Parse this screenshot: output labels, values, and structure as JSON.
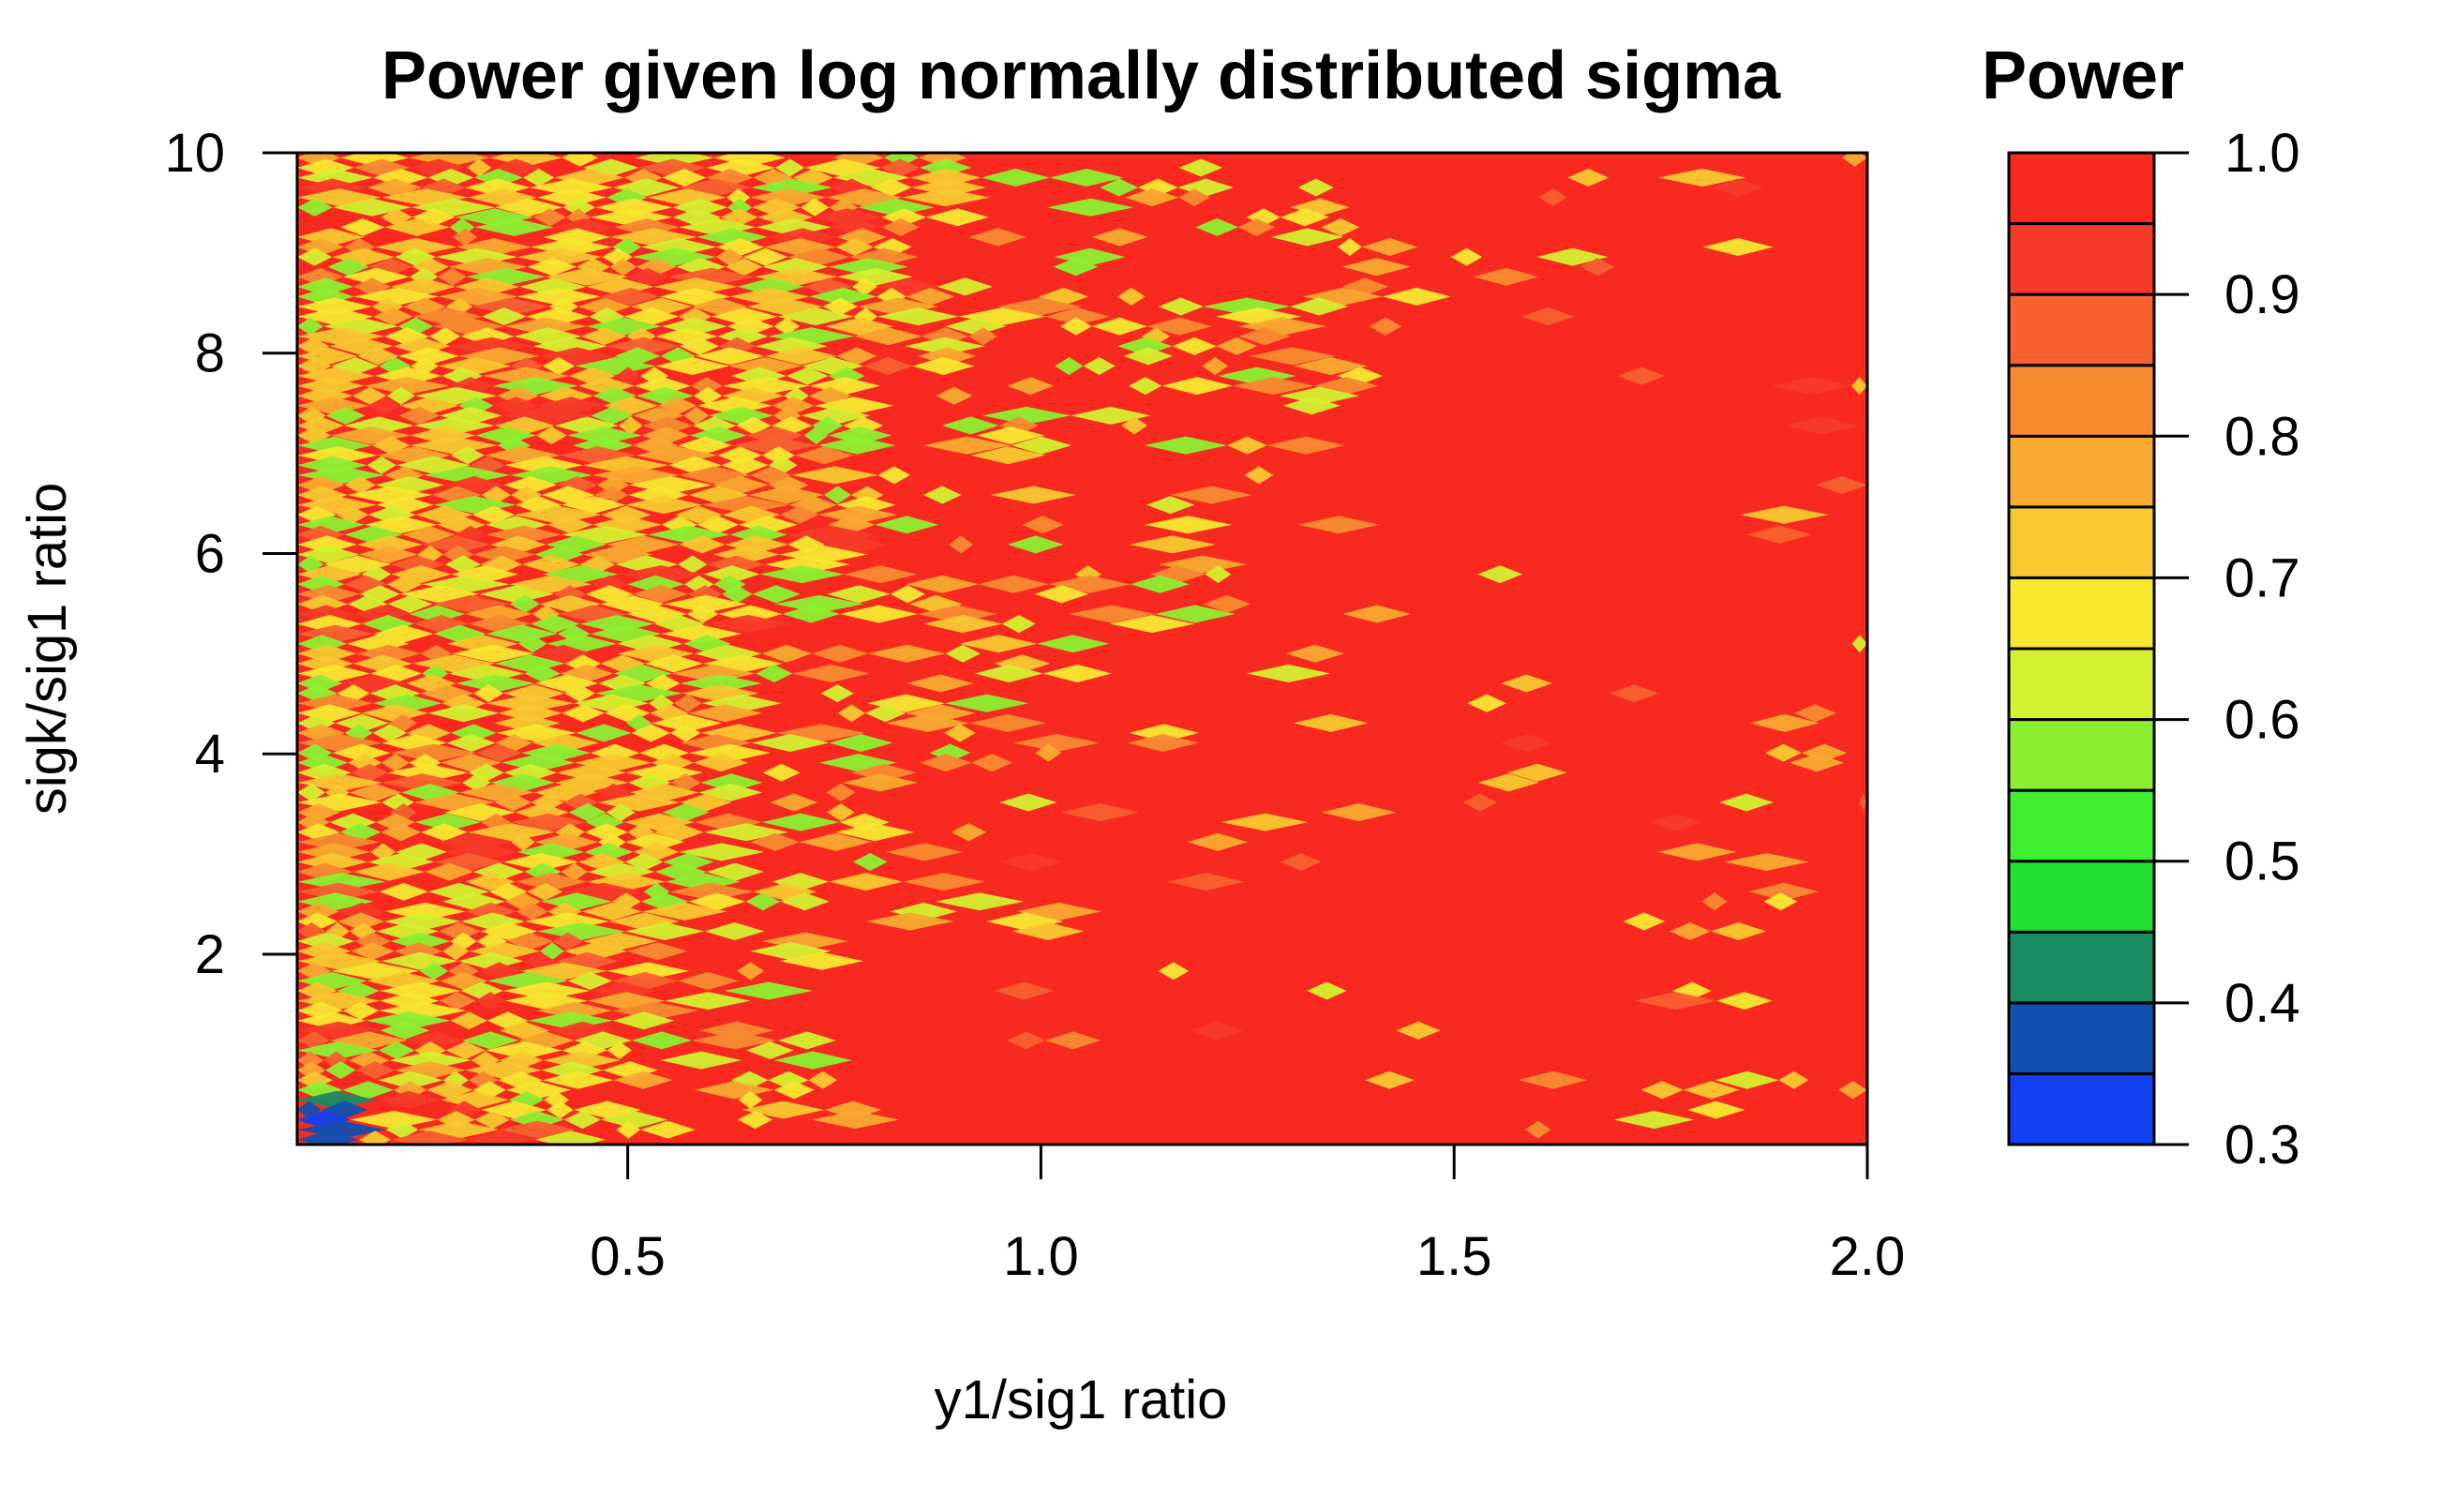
{
  "chart_data": {
    "type": "heatmap",
    "title": "Power given log normally distributed sigma",
    "xlabel": "y1/sig1 ratio",
    "ylabel": "sigk/sig1 ratio",
    "xlim": [
      0.1,
      2.0
    ],
    "ylim": [
      0.1,
      10.0
    ],
    "x_ticks": [
      {
        "value": 0.5,
        "label": "0.5"
      },
      {
        "value": 1.0,
        "label": "1.0"
      },
      {
        "value": 1.5,
        "label": "1.5"
      },
      {
        "value": 2.0,
        "label": "2.0"
      }
    ],
    "y_ticks": [
      {
        "value": 2,
        "label": "2"
      },
      {
        "value": 4,
        "label": "4"
      },
      {
        "value": 6,
        "label": "6"
      },
      {
        "value": 8,
        "label": "8"
      },
      {
        "value": 10,
        "label": "10"
      }
    ],
    "legend": {
      "title": "Power",
      "placement": "right",
      "range": [
        0.3,
        1.0
      ],
      "ticks": [
        {
          "value": 0.3,
          "label": "0.3"
        },
        {
          "value": 0.4,
          "label": "0.4"
        },
        {
          "value": 0.5,
          "label": "0.5"
        },
        {
          "value": 0.6,
          "label": "0.6"
        },
        {
          "value": 0.7,
          "label": "0.7"
        },
        {
          "value": 0.8,
          "label": "0.8"
        },
        {
          "value": 0.9,
          "label": "0.9"
        },
        {
          "value": 1.0,
          "label": "1.0"
        }
      ],
      "levels": [
        {
          "from": 0.3,
          "to": 0.35,
          "color": "#1040f0"
        },
        {
          "from": 0.35,
          "to": 0.4,
          "color": "#1050b0"
        },
        {
          "from": 0.4,
          "to": 0.45,
          "color": "#1a8a60"
        },
        {
          "from": 0.45,
          "to": 0.5,
          "color": "#22e030"
        },
        {
          "from": 0.5,
          "to": 0.55,
          "color": "#40f030"
        },
        {
          "from": 0.55,
          "to": 0.6,
          "color": "#8cf030"
        },
        {
          "from": 0.6,
          "to": 0.65,
          "color": "#d4f030"
        },
        {
          "from": 0.65,
          "to": 0.7,
          "color": "#f8e830"
        },
        {
          "from": 0.7,
          "to": 0.75,
          "color": "#f8c830"
        },
        {
          "from": 0.75,
          "to": 0.8,
          "color": "#f8aa30"
        },
        {
          "from": 0.8,
          "to": 0.85,
          "color": "#f88a30"
        },
        {
          "from": 0.85,
          "to": 0.9,
          "color": "#f86030"
        },
        {
          "from": 0.9,
          "to": 0.95,
          "color": "#f83a28"
        },
        {
          "from": 0.95,
          "to": 1.0,
          "color": "#f82a20"
        }
      ]
    },
    "grid": false,
    "summary": {
      "x_range": [
        0.1,
        2.0
      ],
      "y_range": [
        0.1,
        10.0
      ],
      "dominant_value": 1.0,
      "low_power_region": "small y1/sig1 ratios (below about 0.7), all sigk/sig1 ratios",
      "min_value": 0.3
    }
  }
}
